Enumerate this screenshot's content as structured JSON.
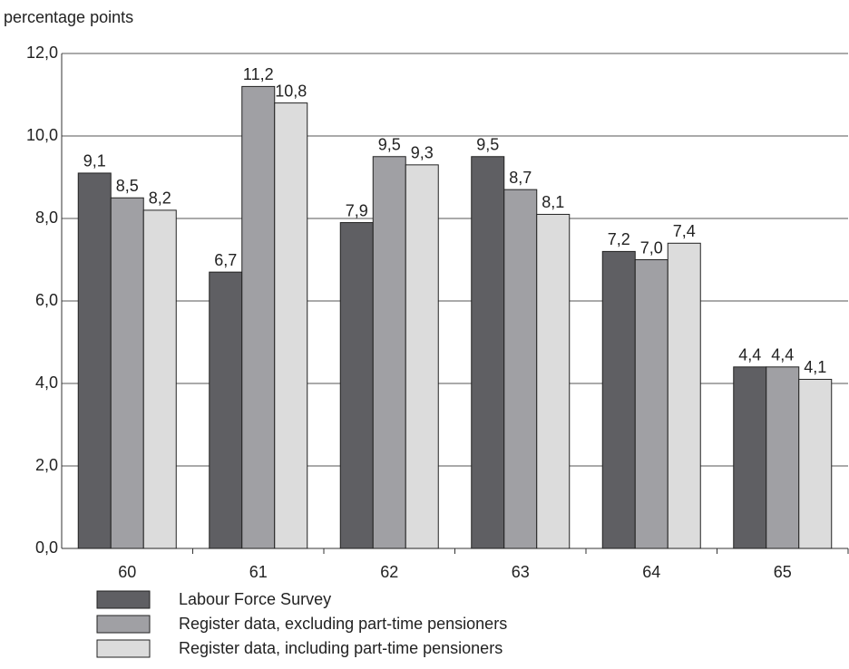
{
  "chart_data": {
    "type": "bar",
    "y_label": "percentage points",
    "categories": [
      "60",
      "61",
      "62",
      "63",
      "64",
      "65"
    ],
    "series": [
      {
        "name": "Labour Force Survey",
        "color": "#5f5f63",
        "values": [
          9.1,
          6.7,
          7.9,
          9.5,
          7.2,
          4.4
        ],
        "value_labels": [
          "9,1",
          "6,7",
          "7,9",
          "9,5",
          "7,2",
          "4,4"
        ]
      },
      {
        "name": "Register data, excluding part-time pensioners",
        "color": "#a0a0a4",
        "values": [
          8.5,
          11.2,
          9.5,
          8.7,
          7.0,
          4.4
        ],
        "value_labels": [
          "8,5",
          "11,2",
          "9,5",
          "8,7",
          "7,0",
          "4,4"
        ]
      },
      {
        "name": "Register data, including part-time pensioners",
        "color": "#dcdcdc",
        "values": [
          8.2,
          10.8,
          9.3,
          8.1,
          7.4,
          4.1
        ],
        "value_labels": [
          "8,2",
          "10,8",
          "9,3",
          "8,1",
          "7,4",
          "4,1"
        ]
      }
    ],
    "ylim": [
      0,
      12
    ],
    "yticks": [
      {
        "value": 0,
        "label": "0,0"
      },
      {
        "value": 2,
        "label": "2,0"
      },
      {
        "value": 4,
        "label": "4,0"
      },
      {
        "value": 6,
        "label": "6,0"
      },
      {
        "value": 8,
        "label": "8,0"
      },
      {
        "value": 10,
        "label": "10,0"
      },
      {
        "value": 12,
        "label": "12,0"
      }
    ],
    "grid": true
  }
}
